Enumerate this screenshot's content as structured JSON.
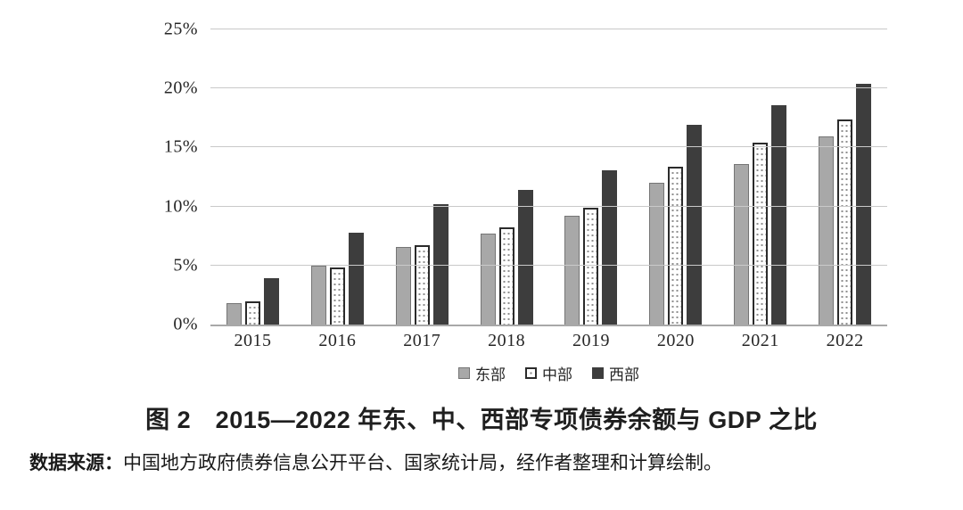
{
  "figure": {
    "caption": "图 2　2015—2022 年东、中、西部专项债券余额与 GDP 之比",
    "source_label": "数据来源：",
    "source_text": "中国地方政府债券信息公开平台、国家统计局，经作者整理和计算绘制。"
  },
  "chart_data": {
    "type": "bar",
    "title": "",
    "xlabel": "",
    "ylabel": "",
    "categories": [
      "2015",
      "2016",
      "2017",
      "2018",
      "2019",
      "2020",
      "2021",
      "2022"
    ],
    "series": [
      {
        "name": "东部",
        "style": "east",
        "values": [
          1.8,
          5.0,
          6.6,
          7.7,
          9.2,
          12.0,
          13.6,
          15.9
        ]
      },
      {
        "name": "中部",
        "style": "central",
        "values": [
          2.0,
          4.8,
          6.7,
          8.2,
          9.9,
          13.4,
          15.4,
          17.4
        ]
      },
      {
        "name": "西部",
        "style": "west",
        "values": [
          3.9,
          7.8,
          10.2,
          11.4,
          13.1,
          16.9,
          18.6,
          20.4
        ]
      }
    ],
    "ylim": [
      0,
      25
    ],
    "yticks": [
      0,
      5,
      10,
      15,
      20,
      25
    ],
    "ytick_labels": [
      "0%",
      "5%",
      "10%",
      "15%",
      "20%",
      "25%"
    ],
    "unit": "%",
    "grid": true,
    "legend_position": "bottom",
    "colors": {
      "east_fill": "#a8a8a8",
      "east_border": "#757575",
      "central_fill": "#ffffff",
      "central_border": "#2b2b2b",
      "central_dots": "#8f8f8f",
      "west_fill": "#3d3d3d",
      "gridline": "#c9c9c9",
      "baseline": "#a8a8a8",
      "text": "#262626"
    }
  }
}
